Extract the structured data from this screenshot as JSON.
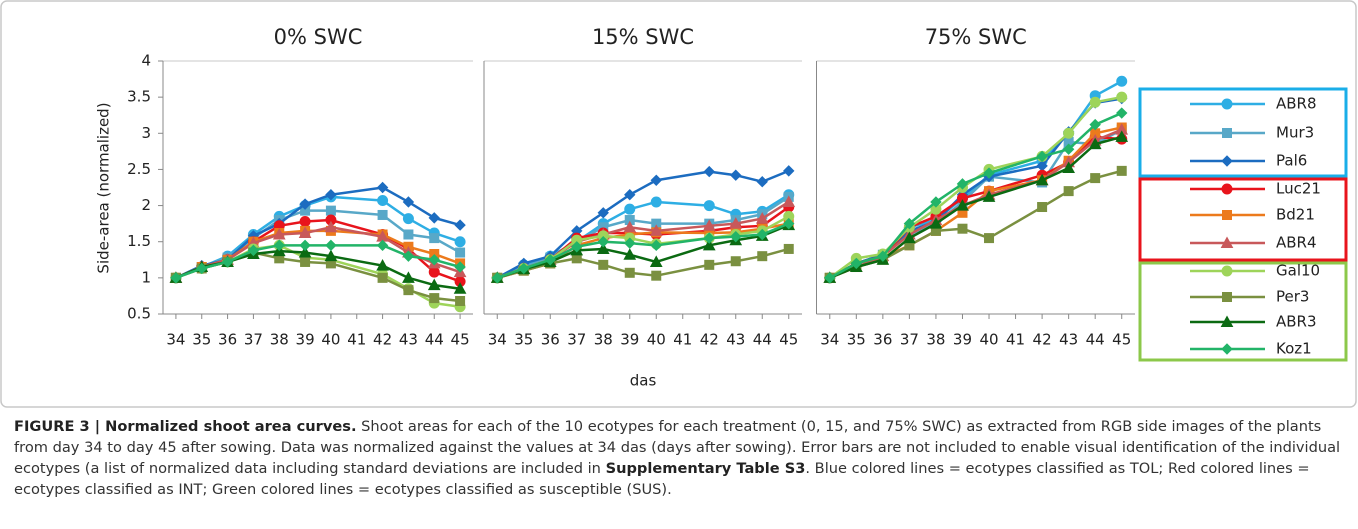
{
  "chart_data": [
    {
      "type": "line",
      "title": "0% SWC",
      "y_label": "Side-area (normalized)",
      "x": [
        34,
        35,
        36,
        37,
        38,
        39,
        40,
        42,
        43,
        44,
        45
      ],
      "xlim": [
        33.5,
        45.5
      ],
      "xticks": [
        34,
        35,
        36,
        37,
        38,
        39,
        40,
        41,
        42,
        43,
        44,
        45
      ],
      "ylim": [
        0.5,
        4
      ],
      "yticks": [
        0.5,
        1,
        1.5,
        2,
        2.5,
        3,
        3.5,
        4
      ],
      "series": [
        {
          "name": "ABR8",
          "color": "#2eaee4",
          "marker": "circle",
          "values": [
            1,
            1.15,
            1.3,
            1.6,
            1.85,
            2.0,
            2.12,
            2.07,
            1.82,
            1.62,
            1.5
          ]
        },
        {
          "name": "Mur3",
          "color": "#58a8c8",
          "marker": "square",
          "values": [
            1,
            1.15,
            1.28,
            1.55,
            1.8,
            1.93,
            1.93,
            1.87,
            1.6,
            1.55,
            1.35
          ]
        },
        {
          "name": "Pal6",
          "color": "#1c6cc0",
          "marker": "diamond",
          "values": [
            1,
            1.17,
            1.25,
            1.58,
            1.75,
            2.02,
            2.15,
            2.25,
            2.05,
            1.83,
            1.73
          ]
        },
        {
          "name": "Luc21",
          "color": "#e8141c",
          "marker": "circle",
          "values": [
            1,
            1.15,
            1.25,
            1.5,
            1.72,
            1.78,
            1.8,
            1.6,
            1.4,
            1.08,
            0.95
          ]
        },
        {
          "name": "Bd21",
          "color": "#ec7a1c",
          "marker": "square",
          "values": [
            1,
            1.15,
            1.25,
            1.5,
            1.62,
            1.65,
            1.65,
            1.6,
            1.43,
            1.33,
            1.2
          ]
        },
        {
          "name": "ABR4",
          "color": "#c8585a",
          "marker": "triangle",
          "values": [
            1,
            1.15,
            1.25,
            1.48,
            1.6,
            1.62,
            1.7,
            1.57,
            1.35,
            1.2,
            1.08
          ]
        },
        {
          "name": "Gal10",
          "color": "#9ed45a",
          "marker": "circle",
          "values": [
            1,
            1.13,
            1.22,
            1.4,
            1.45,
            1.28,
            1.25,
            1.05,
            0.85,
            0.65,
            0.6
          ]
        },
        {
          "name": "Per3",
          "color": "#7a9040",
          "marker": "square",
          "values": [
            1,
            1.13,
            1.22,
            1.35,
            1.27,
            1.22,
            1.2,
            1.0,
            0.83,
            0.72,
            0.68
          ]
        },
        {
          "name": "ABR3",
          "color": "#0b6a12",
          "marker": "triangle",
          "values": [
            1,
            1.15,
            1.22,
            1.33,
            1.37,
            1.35,
            1.3,
            1.17,
            1.0,
            0.9,
            0.85
          ]
        },
        {
          "name": "Koz1",
          "color": "#22b468",
          "marker": "diamond",
          "values": [
            1,
            1.13,
            1.22,
            1.38,
            1.45,
            1.45,
            1.45,
            1.45,
            1.3,
            1.25,
            1.15
          ]
        }
      ]
    },
    {
      "type": "line",
      "title": "15% SWC",
      "x_label": "das",
      "x": [
        34,
        35,
        36,
        37,
        38,
        39,
        40,
        42,
        43,
        44,
        45
      ],
      "xlim": [
        33.5,
        45.5
      ],
      "xticks": [
        34,
        35,
        36,
        37,
        38,
        39,
        40,
        41,
        42,
        43,
        44,
        45
      ],
      "ylim": [
        0.5,
        4
      ],
      "series": [
        {
          "name": "ABR8",
          "color": "#2eaee4",
          "marker": "circle",
          "values": [
            1,
            1.18,
            1.3,
            1.5,
            1.75,
            1.95,
            2.05,
            2.0,
            1.88,
            1.92,
            2.15
          ]
        },
        {
          "name": "Mur3",
          "color": "#58a8c8",
          "marker": "square",
          "values": [
            1,
            1.15,
            1.28,
            1.5,
            1.7,
            1.8,
            1.75,
            1.75,
            1.8,
            1.88,
            2.12
          ]
        },
        {
          "name": "Pal6",
          "color": "#1c6cc0",
          "marker": "diamond",
          "values": [
            1,
            1.2,
            1.3,
            1.65,
            1.9,
            2.15,
            2.35,
            2.47,
            2.42,
            2.33,
            2.48
          ]
        },
        {
          "name": "Luc21",
          "color": "#e8141c",
          "marker": "circle",
          "values": [
            1,
            1.13,
            1.25,
            1.55,
            1.62,
            1.62,
            1.6,
            1.65,
            1.7,
            1.72,
            1.98
          ]
        },
        {
          "name": "Bd21",
          "color": "#ec7a1c",
          "marker": "square",
          "values": [
            1,
            1.1,
            1.2,
            1.45,
            1.55,
            1.6,
            1.63,
            1.62,
            1.63,
            1.68,
            1.75
          ]
        },
        {
          "name": "ABR4",
          "color": "#c8585a",
          "marker": "triangle",
          "values": [
            1,
            1.13,
            1.25,
            1.5,
            1.6,
            1.7,
            1.65,
            1.72,
            1.75,
            1.82,
            2.05
          ]
        },
        {
          "name": "Gal10",
          "color": "#9ed45a",
          "marker": "circle",
          "values": [
            1,
            1.13,
            1.25,
            1.52,
            1.58,
            1.55,
            1.47,
            1.55,
            1.6,
            1.65,
            1.85
          ]
        },
        {
          "name": "Per3",
          "color": "#7a9040",
          "marker": "square",
          "values": [
            1,
            1.1,
            1.2,
            1.27,
            1.18,
            1.07,
            1.03,
            1.18,
            1.23,
            1.3,
            1.4
          ]
        },
        {
          "name": "ABR3",
          "color": "#0b6a12",
          "marker": "triangle",
          "values": [
            1,
            1.12,
            1.22,
            1.38,
            1.4,
            1.32,
            1.22,
            1.45,
            1.52,
            1.58,
            1.73
          ]
        },
        {
          "name": "Koz1",
          "color": "#22b468",
          "marker": "diamond",
          "values": [
            1,
            1.13,
            1.25,
            1.43,
            1.5,
            1.48,
            1.45,
            1.55,
            1.57,
            1.6,
            1.75
          ]
        }
      ]
    },
    {
      "type": "line",
      "title": "75% SWC",
      "x": [
        34,
        35,
        36,
        37,
        38,
        39,
        40,
        42,
        43,
        44,
        45
      ],
      "xlim": [
        33.5,
        45.5
      ],
      "xticks": [
        34,
        35,
        36,
        37,
        38,
        39,
        40,
        41,
        42,
        43,
        44,
        45
      ],
      "ylim": [
        0.5,
        4
      ],
      "series": [
        {
          "name": "ABR8",
          "color": "#2eaee4",
          "marker": "circle",
          "values": [
            1,
            1.2,
            1.32,
            1.7,
            1.8,
            2.1,
            2.42,
            2.62,
            3.0,
            3.52,
            3.72
          ]
        },
        {
          "name": "Mur3",
          "color": "#58a8c8",
          "marker": "square",
          "values": [
            1,
            1.2,
            1.32,
            1.6,
            1.75,
            2.05,
            2.4,
            2.32,
            2.88,
            2.85,
            3.05
          ]
        },
        {
          "name": "Pal6",
          "color": "#1c6cc0",
          "marker": "diamond",
          "values": [
            1,
            1.2,
            1.32,
            1.65,
            1.78,
            2.15,
            2.4,
            2.55,
            3.02,
            3.42,
            3.48
          ]
        },
        {
          "name": "Luc21",
          "color": "#e8141c",
          "marker": "circle",
          "values": [
            1,
            1.2,
            1.3,
            1.7,
            1.85,
            2.1,
            2.2,
            2.42,
            2.6,
            2.95,
            2.92
          ]
        },
        {
          "name": "Bd21",
          "color": "#ec7a1c",
          "marker": "square",
          "values": [
            1,
            1.15,
            1.28,
            1.45,
            1.65,
            1.9,
            2.2,
            2.35,
            2.62,
            3.0,
            3.08
          ]
        },
        {
          "name": "ABR4",
          "color": "#c8585a",
          "marker": "triangle",
          "values": [
            1,
            1.15,
            1.3,
            1.6,
            1.8,
            2.0,
            2.15,
            2.35,
            2.6,
            2.9,
            3.05
          ]
        },
        {
          "name": "Gal10",
          "color": "#9ed45a",
          "marker": "circle",
          "values": [
            1,
            1.27,
            1.33,
            1.7,
            1.95,
            2.25,
            2.5,
            2.68,
            3.0,
            3.43,
            3.5
          ]
        },
        {
          "name": "Per3",
          "color": "#7a9040",
          "marker": "square",
          "values": [
            1,
            1.15,
            1.25,
            1.45,
            1.65,
            1.68,
            1.55,
            1.98,
            2.2,
            2.38,
            2.48
          ]
        },
        {
          "name": "ABR3",
          "color": "#0b6a12",
          "marker": "triangle",
          "values": [
            1,
            1.15,
            1.25,
            1.55,
            1.75,
            2.0,
            2.12,
            2.35,
            2.52,
            2.85,
            2.95
          ]
        },
        {
          "name": "Koz1",
          "color": "#22b468",
          "marker": "diamond",
          "values": [
            1,
            1.2,
            1.3,
            1.75,
            2.05,
            2.3,
            2.45,
            2.68,
            2.78,
            3.12,
            3.28
          ]
        }
      ]
    }
  ],
  "caption": {
    "heading": "FIGURE 3 | Normalized shoot area curves.",
    "text": " Shoot areas for each of the 10 ecotypes for each treatment (0, 15, and 75% SWC) as extracted from RGB side images of the plants from day 34 to day 45 after sowing. Data was normalized against the values at 34 das (days after sowing). Error bars are not included to enable visual identification of the individual ecotypes (a list of normalized data including standard deviations are included in ",
    "bold": "Supplementary Table S3",
    "tail": ". Blue colored lines = ecotypes classified as TOL; Red colored lines = ecotypes classified as INT; Green colored lines = ecotypes classified as susceptible (SUS)."
  }
}
